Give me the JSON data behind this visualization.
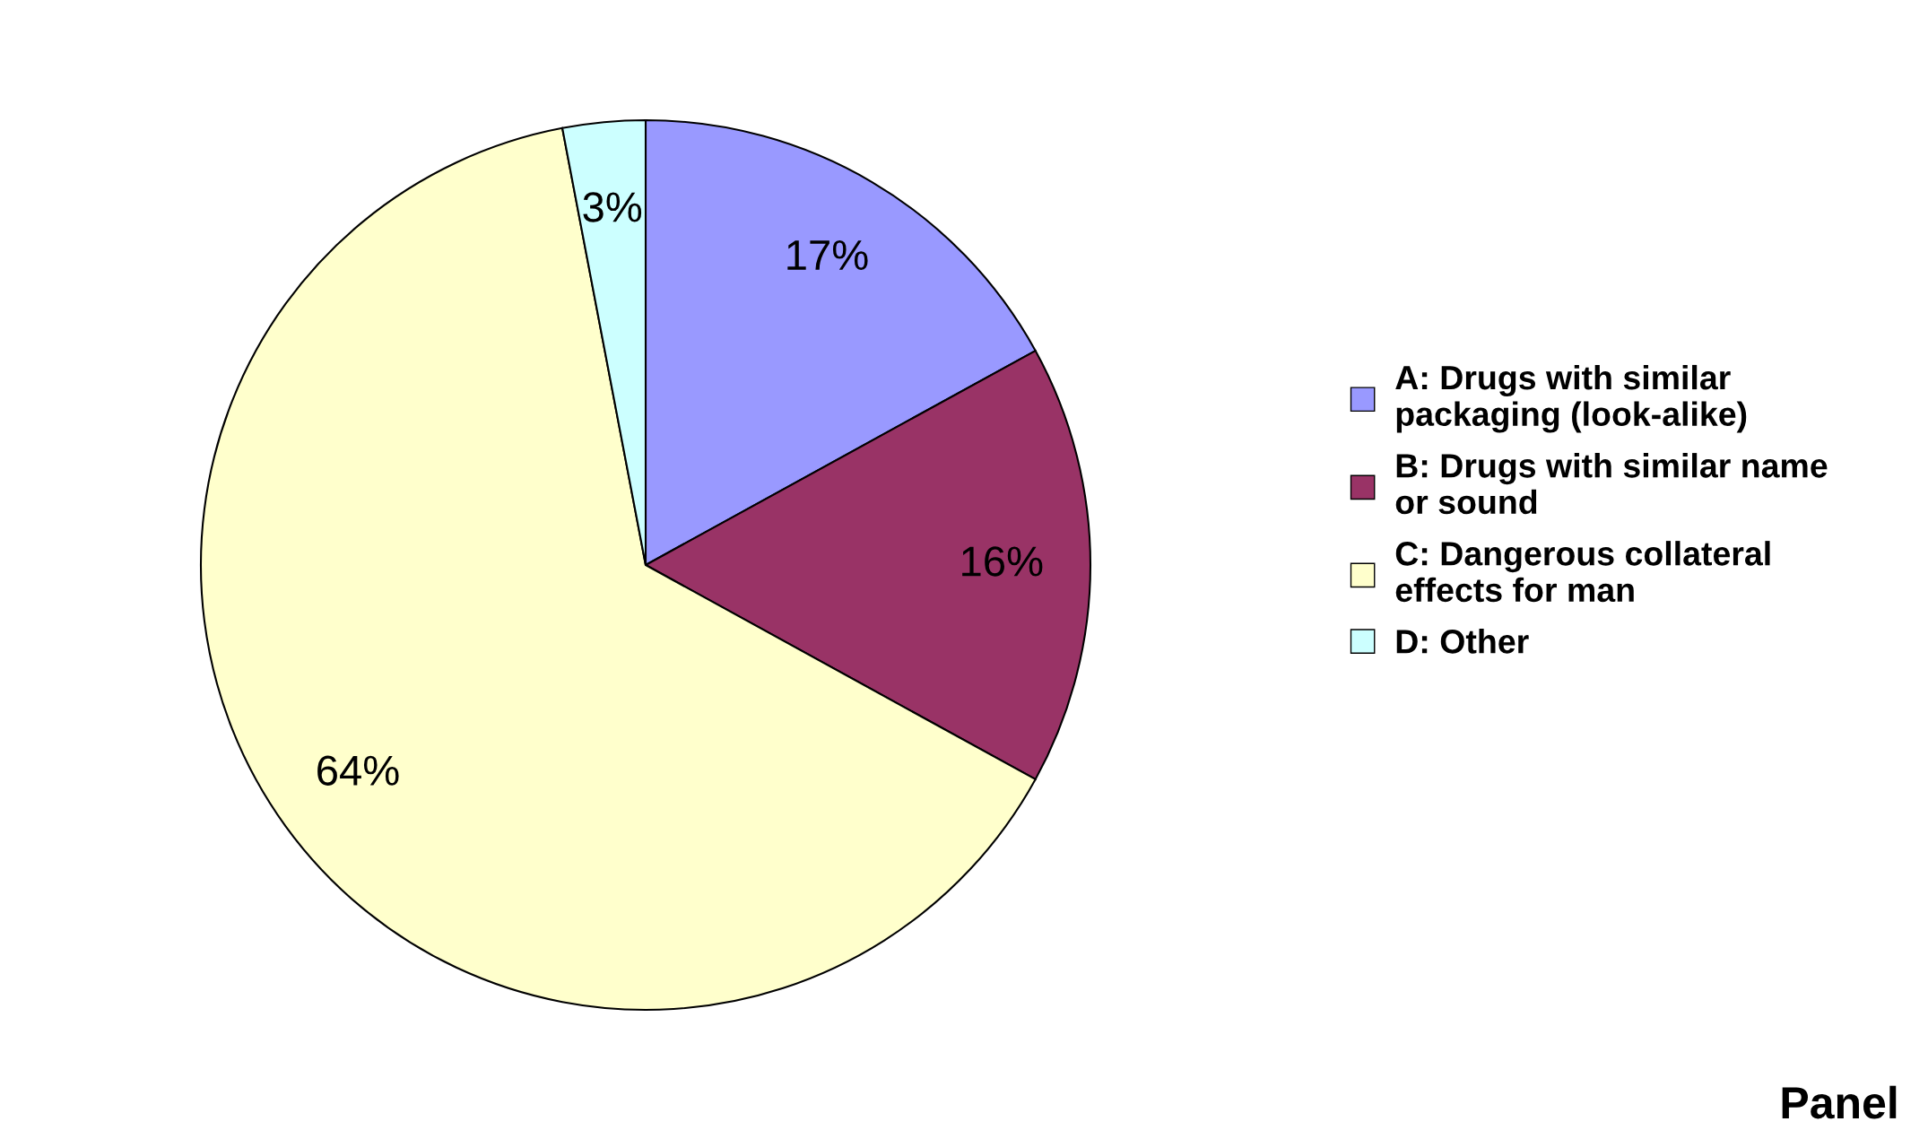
{
  "chart_data": {
    "type": "pie",
    "categories": [
      "A: Drugs with similar\npackaging (look-alike)",
      "B: Drugs with similar name\nor sound",
      "C: Dangerous collateral\neffects for man",
      "D: Other"
    ],
    "values": [
      17,
      16,
      64,
      3
    ],
    "colors": [
      "#9999ff",
      "#993366",
      "#ffffcc",
      "#ccffff"
    ],
    "value_labels": [
      "17%",
      "16%",
      "64%",
      "3%"
    ],
    "legend": "right",
    "annotations": [
      "Panel"
    ]
  }
}
